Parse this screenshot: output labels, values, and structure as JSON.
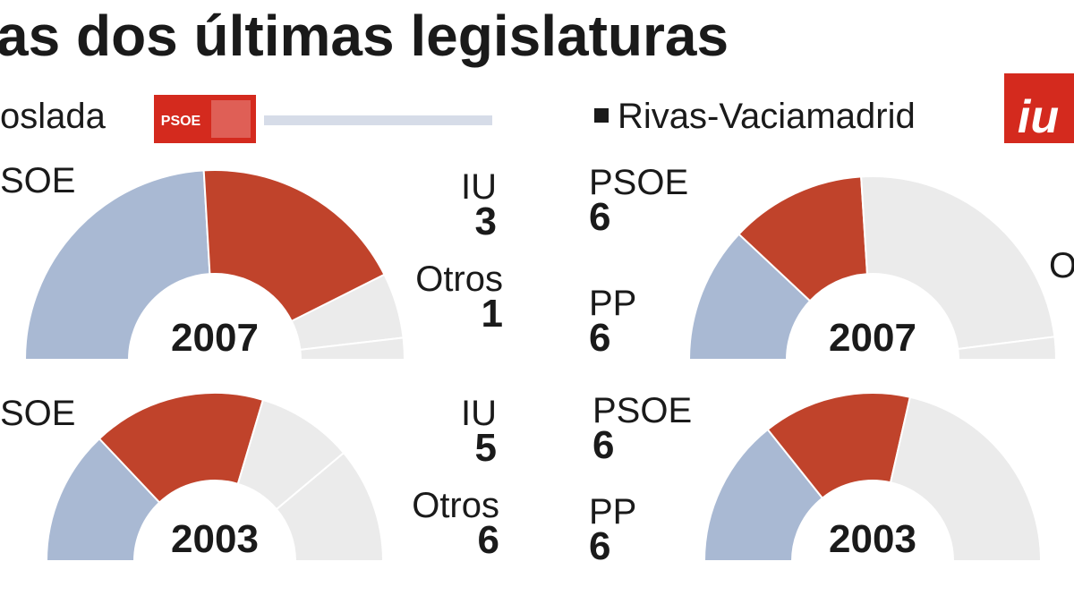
{
  "header": {
    "title": "as dos últimas legislaturas",
    "left_city": "oslada",
    "left_logo": "PSOE",
    "right_city": "Rivas-Vaciamadrid",
    "right_logo": "iu"
  },
  "chart_data": [
    {
      "type": "half-donut",
      "title": "2007",
      "categories": [
        null,
        "SOE",
        "IU",
        "Otros"
      ],
      "values": [
        13,
        10,
        3,
        1
      ],
      "value_labels": [
        null,
        null,
        "3",
        "1"
      ],
      "colors": [
        "#a9b9d3",
        "#c0432b",
        "#ebebeb",
        "#ebebeb"
      ]
    },
    {
      "type": "half-donut",
      "title": "2003",
      "categories": [
        null,
        "SOE",
        "IU",
        "Otros"
      ],
      "values": [
        7,
        9,
        5,
        6
      ],
      "value_labels": [
        null,
        null,
        "5",
        "6"
      ],
      "colors": [
        "#a9b9d3",
        "#c0432b",
        "#ebebeb",
        "#ebebeb"
      ]
    },
    {
      "type": "half-donut",
      "title": "2007",
      "categories": [
        "PP",
        "PSOE",
        null,
        "O"
      ],
      "values": [
        6,
        6,
        12,
        1
      ],
      "value_labels": [
        "6",
        "6",
        null,
        null
      ],
      "colors": [
        "#a9b9d3",
        "#c0432b",
        "#ebebeb",
        "#ebebeb"
      ]
    },
    {
      "type": "half-donut",
      "title": "2003",
      "categories": [
        "PP",
        "PSOE",
        null
      ],
      "values": [
        6,
        6,
        9
      ],
      "value_labels": [
        "6",
        "6",
        null
      ],
      "colors": [
        "#a9b9d3",
        "#c0432b",
        "#ebebeb"
      ]
    }
  ]
}
